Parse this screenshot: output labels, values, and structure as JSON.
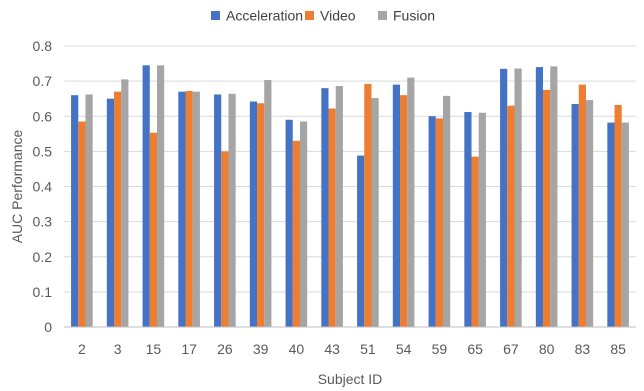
{
  "chart_data": {
    "type": "bar",
    "title": "",
    "xlabel": "Subject ID",
    "ylabel": "AUC Performance",
    "ylim": [
      0,
      0.8
    ],
    "yticks": [
      "0",
      "0.1",
      "0.2",
      "0.3",
      "0.4",
      "0.5",
      "0.6",
      "0.7",
      "0.8"
    ],
    "grid": true,
    "legend_position": "top",
    "categories": [
      "2",
      "3",
      "15",
      "17",
      "26",
      "39",
      "40",
      "43",
      "51",
      "54",
      "59",
      "65",
      "67",
      "80",
      "83",
      "85"
    ],
    "series": [
      {
        "name": "Acceleration",
        "color": "#4472C4",
        "values": [
          0.66,
          0.65,
          0.745,
          0.67,
          0.662,
          0.642,
          0.59,
          0.68,
          0.488,
          0.69,
          0.6,
          0.612,
          0.735,
          0.74,
          0.635,
          0.582
        ]
      },
      {
        "name": "Video",
        "color": "#ED7D31",
        "values": [
          0.585,
          0.67,
          0.553,
          0.672,
          0.5,
          0.637,
          0.53,
          0.622,
          0.692,
          0.66,
          0.594,
          0.485,
          0.63,
          0.675,
          0.69,
          0.632
        ]
      },
      {
        "name": "Fusion",
        "color": "#A5A5A5",
        "values": [
          0.662,
          0.705,
          0.745,
          0.67,
          0.664,
          0.703,
          0.585,
          0.686,
          0.652,
          0.71,
          0.658,
          0.61,
          0.736,
          0.742,
          0.646,
          0.582
        ]
      }
    ]
  }
}
